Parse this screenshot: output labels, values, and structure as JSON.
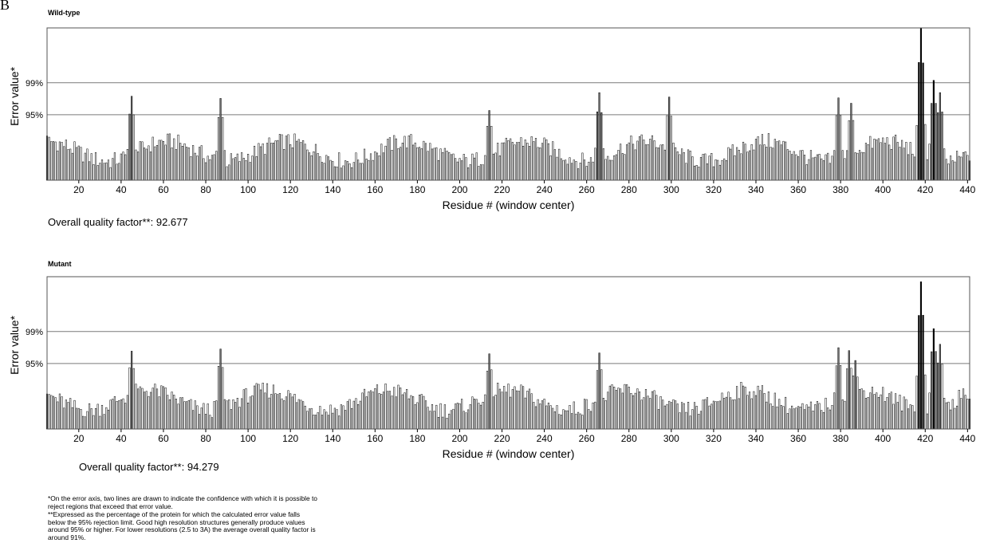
{
  "panel_label": "B",
  "chart_data": [
    {
      "type": "bar",
      "title": "Wild-type",
      "xlabel": "Residue # (window center)",
      "ylabel": "Error value*",
      "x_range": [
        5,
        441
      ],
      "x_ticks": [
        "20",
        "40",
        "60",
        "80",
        "100",
        "120",
        "140",
        "160",
        "180",
        "200",
        "220",
        "240",
        "260",
        "280",
        "300",
        "320",
        "340",
        "360",
        "380",
        "400",
        "420",
        "440"
      ],
      "y_scale": "error value percentile (vertical positions relative to plot height)",
      "y_lines": [
        {
          "label": "99%",
          "level": 0.64
        },
        {
          "label": "95%",
          "level": 0.43
        }
      ],
      "status_colors": {
        "normal": "#ffffff",
        "above_95": "#707070",
        "above_99": "#000000"
      },
      "peaks": [
        {
          "center": 45,
          "height": 0.56
        },
        {
          "center": 87,
          "height": 0.54
        },
        {
          "center": 214,
          "height": 0.46
        },
        {
          "center": 266,
          "height": 0.58
        },
        {
          "center": 299,
          "height": 0.55
        },
        {
          "center": 379,
          "height": 0.55
        },
        {
          "center": 385,
          "height": 0.51
        },
        {
          "center": 418,
          "height": 1.0
        },
        {
          "center": 424,
          "height": 0.66
        },
        {
          "center": 427,
          "height": 0.58
        }
      ],
      "quality_label": "Overall quality factor**: 92.677"
    },
    {
      "type": "bar",
      "title": "Mutant",
      "xlabel": "Residue # (window center)",
      "ylabel": "Error value*",
      "x_range": [
        5,
        441
      ],
      "x_ticks": [
        "20",
        "40",
        "60",
        "80",
        "100",
        "120",
        "140",
        "160",
        "180",
        "200",
        "220",
        "240",
        "260",
        "280",
        "300",
        "320",
        "340",
        "360",
        "380",
        "400",
        "420",
        "440"
      ],
      "y_scale": "error value percentile (vertical positions relative to plot height)",
      "y_lines": [
        {
          "label": "99%",
          "level": 0.64
        },
        {
          "label": "95%",
          "level": 0.43
        }
      ],
      "status_colors": {
        "normal": "#ffffff",
        "above_95": "#707070",
        "above_99": "#000000"
      },
      "peaks": [
        {
          "center": 45,
          "height": 0.52
        },
        {
          "center": 87,
          "height": 0.53
        },
        {
          "center": 214,
          "height": 0.5
        },
        {
          "center": 266,
          "height": 0.5
        },
        {
          "center": 379,
          "height": 0.54
        },
        {
          "center": 384,
          "height": 0.52
        },
        {
          "center": 387,
          "height": 0.45
        },
        {
          "center": 418,
          "height": 0.97
        },
        {
          "center": 424,
          "height": 0.66
        },
        {
          "center": 427,
          "height": 0.56
        }
      ],
      "quality_label": "Overall quality factor**: 94.279"
    }
  ],
  "footnotes": [
    "*On the error axis, two lines are drawn to indicate the confidence with which it is possible to reject regions that exceed that error value.",
    "**Expressed as the percentage of the protein for which the calculated error value falls below the 95% rejection limit.  Good high resolution structures generally produce values around 95% or higher.  For lower resolutions (2.5 to 3A) the average overall quality factor is around 91%."
  ]
}
